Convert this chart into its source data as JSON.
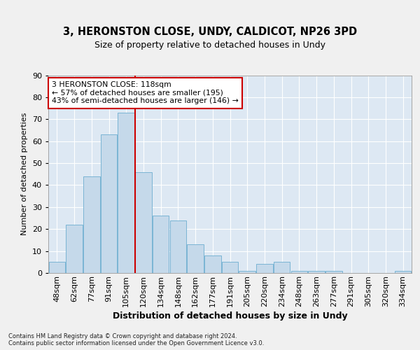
{
  "title1": "3, HERONSTON CLOSE, UNDY, CALDICOT, NP26 3PD",
  "title2": "Size of property relative to detached houses in Undy",
  "xlabel": "Distribution of detached houses by size in Undy",
  "ylabel": "Number of detached properties",
  "categories": [
    "48sqm",
    "62sqm",
    "77sqm",
    "91sqm",
    "105sqm",
    "120sqm",
    "134sqm",
    "148sqm",
    "162sqm",
    "177sqm",
    "191sqm",
    "205sqm",
    "220sqm",
    "234sqm",
    "248sqm",
    "263sqm",
    "277sqm",
    "291sqm",
    "305sqm",
    "320sqm",
    "334sqm"
  ],
  "values": [
    5,
    22,
    44,
    63,
    73,
    46,
    26,
    24,
    13,
    8,
    5,
    1,
    4,
    5,
    1,
    1,
    1,
    0,
    0,
    0,
    1
  ],
  "bar_color": "#c5d9ea",
  "bar_edge_color": "#7ab4d4",
  "background_color": "#dde8f3",
  "grid_color": "#ffffff",
  "vline_x": 4.5,
  "vline_color": "#cc0000",
  "annotation_text": "3 HERONSTON CLOSE: 118sqm\n← 57% of detached houses are smaller (195)\n43% of semi-detached houses are larger (146) →",
  "annotation_box_facecolor": "#ffffff",
  "annotation_box_edgecolor": "#cc0000",
  "footer_text": "Contains HM Land Registry data © Crown copyright and database right 2024.\nContains public sector information licensed under the Open Government Licence v3.0.",
  "fig_facecolor": "#f0f0f0",
  "ylim": [
    0,
    90
  ],
  "yticks": [
    0,
    10,
    20,
    30,
    40,
    50,
    60,
    70,
    80,
    90
  ],
  "title1_fontsize": 10.5,
  "title2_fontsize": 9,
  "ylabel_fontsize": 8,
  "xlabel_fontsize": 9,
  "tick_fontsize": 8,
  "annot_fontsize": 7.8
}
